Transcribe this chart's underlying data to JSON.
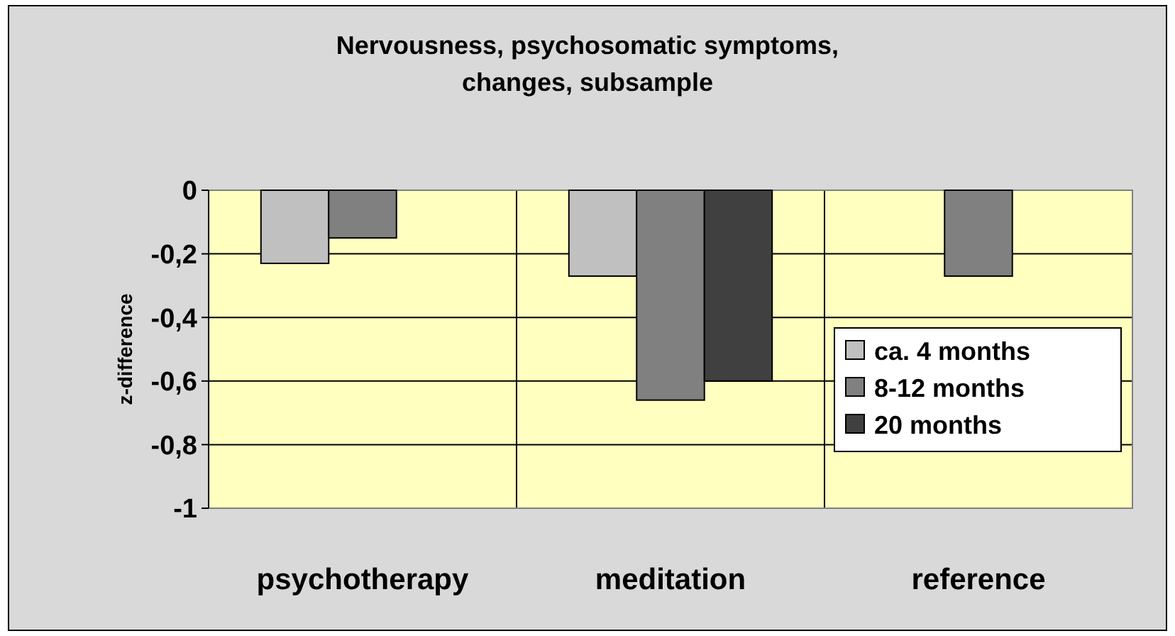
{
  "chart_data": {
    "type": "bar",
    "title": "Nervousness, psychosomatic symptoms, changes, subsample",
    "ylabel": "z-difference",
    "categories": [
      "psychotherapy",
      "meditation",
      "reference"
    ],
    "series": [
      {
        "name": "ca. 4 months",
        "color": "#c0c0c0",
        "values": [
          -0.23,
          -0.27,
          null
        ]
      },
      {
        "name": "8-12 months",
        "color": "#808080",
        "values": [
          -0.15,
          -0.66,
          -0.27
        ]
      },
      {
        "name": "20 months",
        "color": "#404040",
        "values": [
          null,
          -0.6,
          null
        ]
      }
    ],
    "ylim": [
      -1,
      0
    ],
    "yticks": [
      {
        "value": -1,
        "label": "-1"
      },
      {
        "value": -0.8,
        "label": "-0,8"
      },
      {
        "value": -0.6,
        "label": "-0,6"
      },
      {
        "value": -0.4,
        "label": "-0,4"
      },
      {
        "value": -0.2,
        "label": "-0,2"
      },
      {
        "value": 0,
        "label": "0"
      }
    ],
    "grid": true,
    "legend": "right"
  }
}
